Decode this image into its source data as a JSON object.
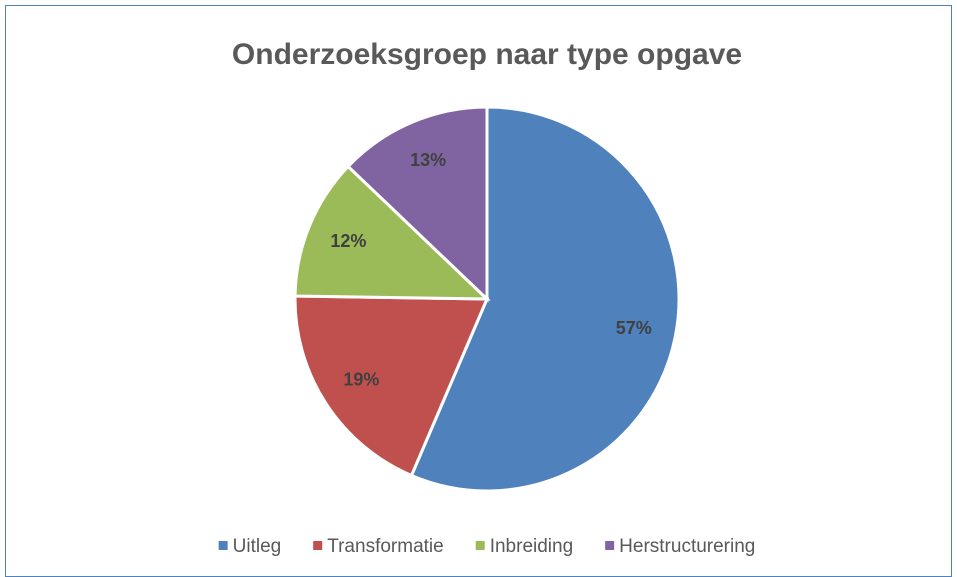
{
  "chart_data": {
    "type": "pie",
    "title": "Onderzoeksgroep naar type opgave",
    "categories": [
      "Uitleg",
      "Transformatie",
      "Inbreiding",
      "Herstructurering"
    ],
    "values": [
      57,
      19,
      12,
      13
    ],
    "value_labels": [
      "57%",
      "19%",
      "12%",
      "13%"
    ],
    "colors": [
      "#4f81bd",
      "#c0504d",
      "#9bbb59",
      "#8064a2"
    ],
    "legend": "bottom"
  }
}
